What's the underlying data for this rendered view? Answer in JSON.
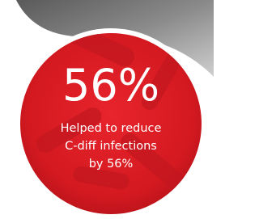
{
  "badge": {
    "headline": "56%",
    "text_lines": [
      "Helped to reduce",
      "C-diff infections",
      "by 56%"
    ]
  }
}
